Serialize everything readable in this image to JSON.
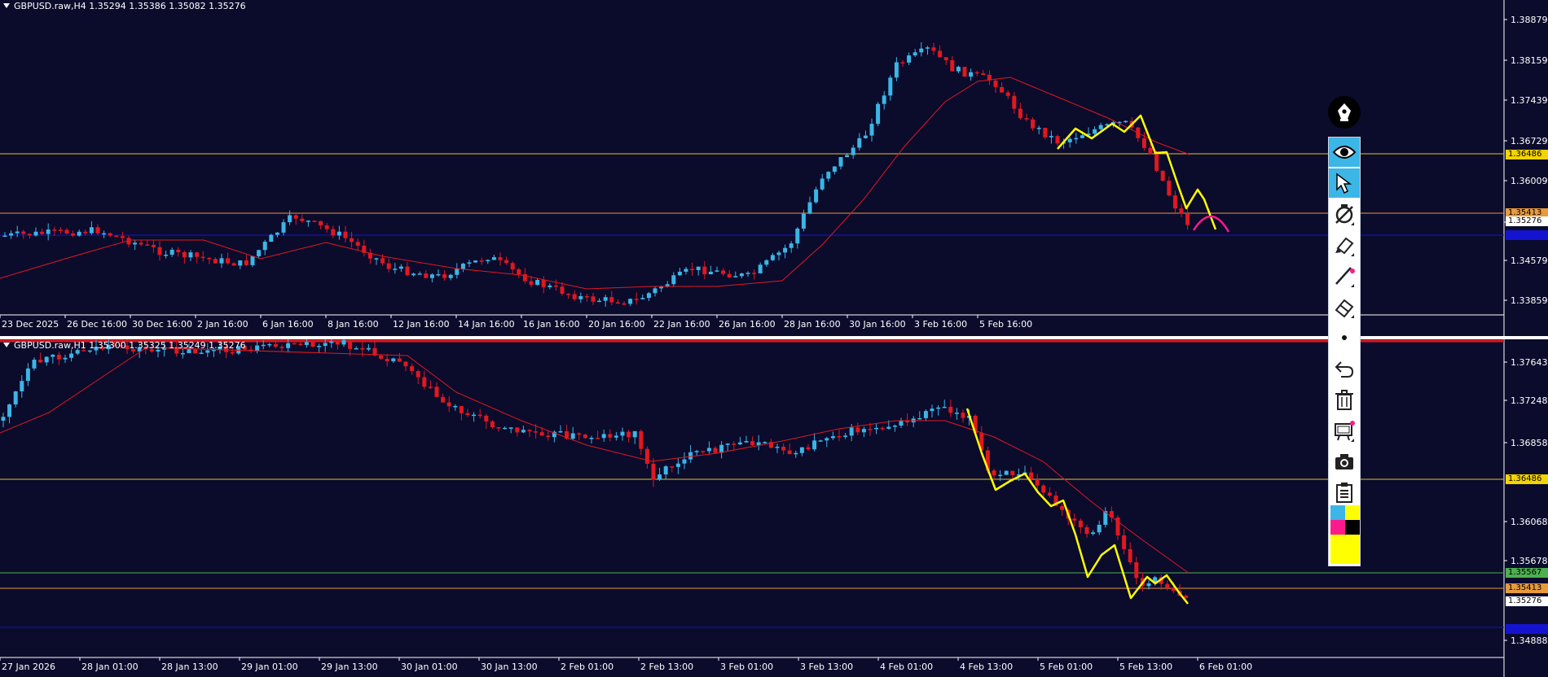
{
  "top_chart": {
    "title": "GBPUSD.raw,H4  1.35294 1.35386 1.35082 1.35276",
    "price_ticks": [
      "1.38879",
      "1.38159",
      "1.37439",
      "1.36729",
      "1.36009",
      "1.35276",
      "1.34579",
      "1.33859"
    ],
    "hline_labels": [
      "1.36486",
      "1.35413"
    ],
    "time_labels": [
      "23 Dec 2025",
      "26 Dec 16:00",
      "30 Dec 16:00",
      "2 Jan 16:00",
      "6 Jan 16:00",
      "8 Jan 16:00",
      "12 Jan 16:00",
      "14 Jan 16:00",
      "16 Jan 16:00",
      "20 Jan 16:00",
      "22 Jan 16:00",
      "26 Jan 16:00",
      "28 Jan 16:00",
      "30 Jan 16:00",
      "3 Feb 16:00",
      "5 Feb 16:00"
    ]
  },
  "bottom_chart": {
    "title": "GBPUSD.raw,H1  1.35300 1.35325 1.35249 1.35276",
    "price_ticks": [
      "1.37643",
      "1.37248",
      "1.36858",
      "1.36068",
      "1.35678",
      "1.34888"
    ],
    "hline_labels": [
      "1.36486",
      "1.35567",
      "1.35413",
      "1.35276"
    ],
    "time_labels": [
      "27 Jan 2026",
      "28 Jan 01:00",
      "28 Jan 13:00",
      "29 Jan 01:00",
      "29 Jan 13:00",
      "30 Jan 01:00",
      "30 Jan 13:00",
      "2 Feb 01:00",
      "2 Feb 13:00",
      "3 Feb 01:00",
      "3 Feb 13:00",
      "4 Feb 01:00",
      "4 Feb 13:00",
      "5 Feb 01:00",
      "5 Feb 13:00",
      "6 Feb 01:00"
    ]
  },
  "colors": {
    "background": "#0b0b2c",
    "bull_candle": "#3bb6e6",
    "bear_candle": "#e01820",
    "moving_average": "#e01820",
    "support_line": "#e6c22e",
    "resistance_line": "#e89a3c",
    "blue_line": "#1414d0",
    "green_line": "#4caf50",
    "drawing": "#ffff00",
    "projection": "#ff1a8c"
  },
  "toolbar": {
    "tools": [
      {
        "name": "pen-icon"
      },
      {
        "name": "eye-icon"
      },
      {
        "name": "cursor-icon"
      },
      {
        "name": "hide-drawings-icon"
      },
      {
        "name": "highlighter-icon"
      },
      {
        "name": "line-icon"
      },
      {
        "name": "eraser-icon"
      },
      {
        "name": "dot-size-icon"
      },
      {
        "name": "undo-icon"
      },
      {
        "name": "trash-icon"
      },
      {
        "name": "board-icon"
      },
      {
        "name": "camera-icon"
      },
      {
        "name": "clipboard-icon"
      }
    ],
    "palette": [
      "#3bb6e6",
      "#ffff00",
      "#ff1a8c",
      "#000000",
      "#ffff00"
    ]
  }
}
